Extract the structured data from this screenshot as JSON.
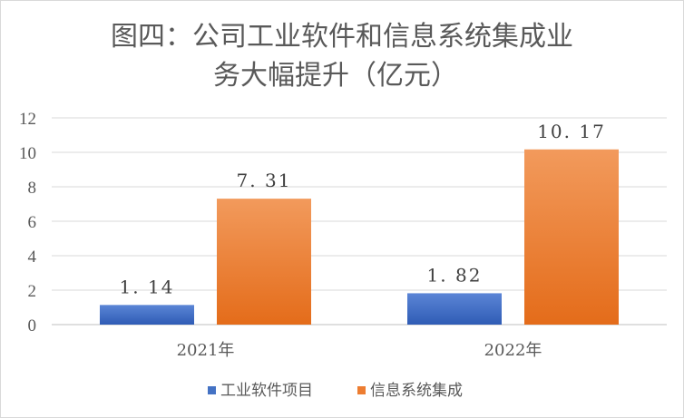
{
  "chart_data": {
    "type": "bar",
    "title_lines": [
      "图四：公司工业软件和信息系统集成业",
      "务大幅提升（亿元）"
    ],
    "categories": [
      "2021年",
      "2022年"
    ],
    "series": [
      {
        "name": "工业软件项目",
        "values": [
          1.14,
          1.82
        ],
        "labels": [
          "1. 14",
          "1. 82"
        ],
        "color": "#4472c4",
        "color_light": "#5b85d6",
        "color_dark": "#2f5cb5"
      },
      {
        "name": "信息系统集成",
        "values": [
          7.31,
          10.17
        ],
        "labels": [
          "7. 31",
          "10. 17"
        ],
        "color": "#ed7d31",
        "color_light": "#f29a5c",
        "color_dark": "#e46c1a"
      }
    ],
    "ylim": [
      0,
      12
    ],
    "yticks": [
      0,
      2,
      4,
      6,
      8,
      10,
      12
    ],
    "grid": true,
    "legend_position": "bottom"
  }
}
